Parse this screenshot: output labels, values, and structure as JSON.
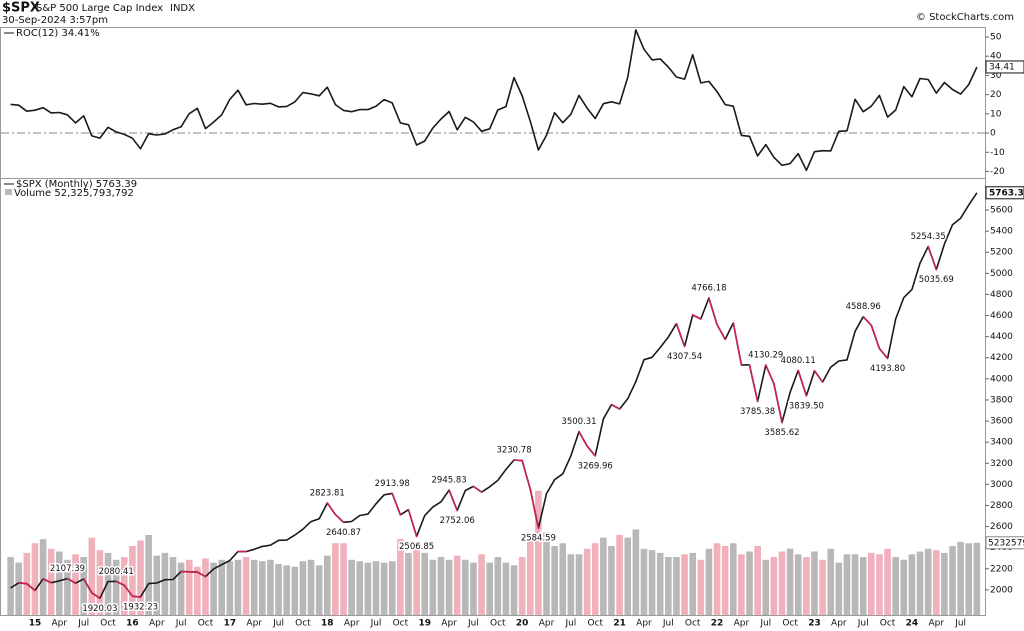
{
  "header": {
    "symbol": "$SPX",
    "name": "S&P 500 Large Cap Index",
    "exchange": "INDX",
    "date": "30-Sep-2024 3:57pm",
    "source": "© StockCharts.com"
  },
  "chart_data": [
    {
      "type": "line",
      "legend": "ROC(12) 34.41%",
      "color": "#1a1a1a",
      "values": [
        14.9,
        14.5,
        11.4,
        11.9,
        13.2,
        10.5,
        10.7,
        9.5,
        5.3,
        9.0,
        -1.5,
        -2.6,
        3.0,
        0.6,
        -0.7,
        -2.7,
        -8.2,
        -0.4,
        -1.0,
        -0.5,
        1.7,
        3.3,
        10.1,
        12.9,
        2.3,
        5.7,
        9.5,
        17.5,
        22.3,
        14.7,
        15.4,
        15.0,
        15.5,
        13.6,
        13.9,
        16.2,
        21.1,
        20.4,
        19.4,
        23.9,
        14.8,
        11.8,
        11.1,
        12.2,
        12.2,
        14.0,
        17.4,
        15.7,
        5.3,
        4.3,
        -6.2,
        -4.2,
        2.6,
        7.3,
        11.2,
        1.7,
        8.2,
        5.8,
        0.9,
        2.2,
        12.0,
        13.8,
        28.9,
        19.3,
        6.1,
        -8.8,
        -1.1,
        10.6,
        5.4,
        9.8,
        19.6,
        13.0,
        7.6,
        15.3,
        16.3,
        15.2,
        29.0,
        53.7,
        43.6,
        38.1,
        38.6,
        34.4,
        29.2,
        28.1,
        40.8,
        26.1,
        26.9,
        21.6,
        14.8,
        14.0,
        -1.2,
        -1.7,
        -11.9,
        -6.0,
        -12.6,
        -16.8,
        -15.9,
        -10.7,
        -19.4,
        -9.7,
        -9.2,
        -9.3,
        0.9,
        1.2,
        17.6,
        11.1,
        14.0,
        19.6,
        8.3,
        12.0,
        24.2,
        18.9,
        28.4,
        27.9,
        20.8,
        26.3,
        22.7,
        20.3,
        25.3,
        34.41
      ],
      "ylim": [
        -23.4,
        54.7
      ],
      "yticks": [
        -20,
        -10,
        0,
        10,
        20,
        30,
        40,
        50
      ],
      "reference_line": 0,
      "reference_color": "#888"
    },
    {
      "type": "line",
      "legend": "$SPX (Monthly) 5763.39",
      "color": "#1a1a1a",
      "down_color": "#cc2255",
      "categories": [
        null,
        null,
        null,
        "15",
        null,
        null,
        "Apr",
        null,
        null,
        "Jul",
        null,
        null,
        "Oct",
        null,
        null,
        "16",
        null,
        null,
        "Apr",
        null,
        null,
        "Jul",
        null,
        null,
        "Oct",
        null,
        null,
        "17",
        null,
        null,
        "Apr",
        null,
        null,
        "Jul",
        null,
        null,
        "Oct",
        null,
        null,
        "18",
        null,
        null,
        "Apr",
        null,
        null,
        "Jul",
        null,
        null,
        "Oct",
        null,
        null,
        "19",
        null,
        null,
        "Apr",
        null,
        null,
        "Jul",
        null,
        null,
        "Oct",
        null,
        null,
        "20",
        null,
        null,
        "Apr",
        null,
        null,
        "Jul",
        null,
        null,
        "Oct",
        null,
        null,
        "21",
        null,
        null,
        "Apr",
        null,
        null,
        "Jul",
        null,
        null,
        "Oct",
        null,
        null,
        "22",
        null,
        null,
        "Apr",
        null,
        null,
        "Jul",
        null,
        null,
        "Oct",
        null,
        null,
        "23",
        null,
        null,
        "Apr",
        null,
        null,
        "Jul",
        null,
        null,
        "Oct",
        null,
        null,
        "24",
        null,
        null,
        "Apr",
        null,
        null,
        "Jul",
        null,
        null
      ],
      "values": [
        2018.05,
        2067.56,
        2058.9,
        1994.99,
        2104.5,
        2067.89,
        2085.51,
        2107.39,
        2063.11,
        2103.84,
        1972.18,
        1920.03,
        2079.36,
        2080.41,
        2043.94,
        1940.24,
        1932.23,
        2059.74,
        2065.3,
        2096.95,
        2098.86,
        2173.6,
        2170.95,
        2168.27,
        2126.15,
        2198.81,
        2238.83,
        2278.87,
        2363.64,
        2362.72,
        2384.2,
        2411.8,
        2423.41,
        2470.3,
        2471.65,
        2519.36,
        2575.26,
        2647.58,
        2673.61,
        2823.81,
        2713.83,
        2640.87,
        2648.05,
        2705.27,
        2718.37,
        2816.29,
        2901.52,
        2913.98,
        2711.74,
        2760.17,
        2506.85,
        2704.1,
        2784.49,
        2834.4,
        2945.83,
        2752.06,
        2941.76,
        2980.38,
        2926.46,
        2976.74,
        3037.56,
        3140.98,
        3230.78,
        3225.52,
        2954.22,
        2584.59,
        2912.43,
        3044.31,
        3100.29,
        3271.12,
        3500.31,
        3363.0,
        3269.96,
        3621.63,
        3756.07,
        3714.24,
        3811.15,
        3972.89,
        4181.17,
        4204.11,
        4297.5,
        4395.26,
        4522.68,
        4307.54,
        4605.38,
        4567.0,
        4766.18,
        4515.55,
        4373.94,
        4530.41,
        4131.93,
        4132.15,
        3785.38,
        4130.29,
        3955.0,
        3585.62,
        3871.98,
        4080.11,
        3839.5,
        4076.6,
        3970.15,
        4109.31,
        4169.48,
        4179.83,
        4450.38,
        4588.96,
        4507.66,
        4288.05,
        4193.8,
        4567.8,
        4769.83,
        4845.65,
        5096.27,
        5254.35,
        5035.69,
        5277.51,
        5460.48,
        5522.3,
        5648.4,
        5763.39
      ],
      "value_labels": [
        null,
        null,
        null,
        null,
        null,
        null,
        null,
        "2107.39",
        null,
        null,
        null,
        "1920.03",
        null,
        "2080.41",
        null,
        null,
        "1932.23",
        null,
        null,
        null,
        null,
        null,
        null,
        null,
        null,
        null,
        null,
        null,
        null,
        null,
        null,
        null,
        null,
        null,
        null,
        null,
        null,
        null,
        null,
        "2823.81",
        null,
        "2640.87",
        null,
        null,
        null,
        null,
        null,
        "2913.98",
        null,
        null,
        "2506.85",
        null,
        null,
        null,
        "2945.83",
        "2752.06",
        null,
        null,
        null,
        null,
        null,
        null,
        "3230.78",
        null,
        null,
        "2584.59",
        null,
        null,
        null,
        null,
        "3500.31",
        null,
        "3269.96",
        null,
        null,
        null,
        null,
        null,
        null,
        null,
        null,
        null,
        null,
        "4307.54",
        null,
        null,
        "4766.18",
        null,
        null,
        null,
        null,
        null,
        "3785.38",
        "4130.29",
        null,
        "3585.62",
        null,
        "4080.11",
        "3839.50",
        null,
        null,
        null,
        null,
        null,
        null,
        "4588.96",
        null,
        null,
        "4193.80",
        null,
        null,
        null,
        null,
        "5254.35",
        "5035.69",
        null,
        null,
        null,
        null,
        null
      ],
      "ylim": [
        1762,
        5894
      ],
      "yticks": [
        2000,
        2200,
        2400,
        2600,
        2800,
        3000,
        3200,
        3400,
        3600,
        3800,
        4000,
        4200,
        4400,
        4600,
        4800,
        5000,
        5200,
        5400,
        5600
      ],
      "volume": {
        "legend": "Volume 52,325,793,792",
        "up_color": "#b8b8b8",
        "down_color": "#f0b0bc",
        "ylim": [
          0,
          100000000000
        ],
        "values": [
          42000000000,
          38000000000,
          45000000000,
          52000000000,
          55000000000,
          48000000000,
          46000000000,
          40000000000,
          44000000000,
          42000000000,
          56000000000,
          47000000000,
          45000000000,
          40000000000,
          42000000000,
          50000000000,
          54000000000,
          58000000000,
          43000000000,
          45000000000,
          42000000000,
          38000000000,
          40000000000,
          35000000000,
          41000000000,
          38000000000,
          40000000000,
          39000000000,
          40000000000,
          42000000000,
          40000000000,
          39000000000,
          40000000000,
          37000000000,
          36000000000,
          35000000000,
          39000000000,
          40000000000,
          36000000000,
          43000000000,
          52000000000,
          52000000000,
          40000000000,
          39000000000,
          38000000000,
          39000000000,
          38000000000,
          39000000000,
          55000000000,
          45000000000,
          52000000000,
          45000000000,
          40000000000,
          42000000000,
          40000000000,
          43000000000,
          40000000000,
          38000000000,
          44000000000,
          38000000000,
          42000000000,
          38000000000,
          36000000000,
          42000000000,
          58000000000,
          90000000000,
          60000000000,
          50000000000,
          52000000000,
          44000000000,
          44000000000,
          48000000000,
          52000000000,
          56000000000,
          50000000000,
          58000000000,
          56000000000,
          62000000000,
          48000000000,
          47000000000,
          45000000000,
          42000000000,
          42000000000,
          44000000000,
          45000000000,
          40000000000,
          48000000000,
          52000000000,
          50000000000,
          52000000000,
          44000000000,
          46000000000,
          50000000000,
          40000000000,
          42000000000,
          46000000000,
          48000000000,
          44000000000,
          42000000000,
          46000000000,
          40000000000,
          48000000000,
          38000000000,
          44000000000,
          44000000000,
          42000000000,
          45000000000,
          44000000000,
          48000000000,
          42000000000,
          40000000000,
          44000000000,
          46000000000,
          48000000000,
          47000000000,
          45000000000,
          50000000000,
          53000000000,
          52000000000,
          52325793792
        ]
      }
    }
  ]
}
